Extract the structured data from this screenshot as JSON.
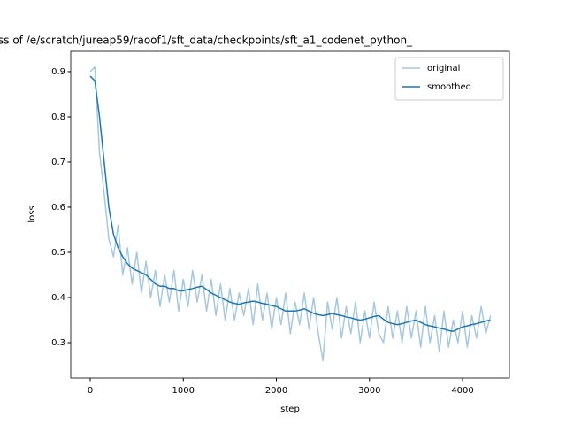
{
  "chart_data": {
    "type": "line",
    "title": "ss of /e/scratch/jureap59/raoof1/sft_data/checkpoints/sft_a1_codenet_python_",
    "x_label": "step",
    "y_label": "loss",
    "x": [
      0,
      50,
      100,
      150,
      200,
      250,
      300,
      350,
      400,
      450,
      500,
      550,
      600,
      650,
      700,
      750,
      800,
      850,
      900,
      950,
      1000,
      1050,
      1100,
      1150,
      1200,
      1250,
      1300,
      1350,
      1400,
      1450,
      1500,
      1550,
      1600,
      1650,
      1700,
      1750,
      1800,
      1850,
      1900,
      1950,
      2000,
      2050,
      2100,
      2150,
      2200,
      2250,
      2300,
      2350,
      2400,
      2450,
      2500,
      2550,
      2600,
      2650,
      2700,
      2750,
      2800,
      2850,
      2900,
      2950,
      3000,
      3050,
      3100,
      3150,
      3200,
      3250,
      3300,
      3350,
      3400,
      3450,
      3500,
      3550,
      3600,
      3650,
      3700,
      3750,
      3800,
      3850,
      3900,
      3950,
      4000,
      4050,
      4100,
      4150,
      4200,
      4250,
      4300
    ],
    "series": [
      {
        "name": "original",
        "color": "#a5c8e1",
        "values": [
          0.9,
          0.91,
          0.72,
          0.63,
          0.53,
          0.49,
          0.56,
          0.45,
          0.51,
          0.43,
          0.5,
          0.41,
          0.48,
          0.4,
          0.46,
          0.38,
          0.45,
          0.39,
          0.46,
          0.37,
          0.44,
          0.38,
          0.46,
          0.39,
          0.45,
          0.37,
          0.44,
          0.36,
          0.43,
          0.35,
          0.42,
          0.35,
          0.41,
          0.36,
          0.42,
          0.34,
          0.43,
          0.35,
          0.41,
          0.33,
          0.4,
          0.34,
          0.41,
          0.32,
          0.39,
          0.34,
          0.41,
          0.33,
          0.4,
          0.32,
          0.26,
          0.39,
          0.33,
          0.4,
          0.31,
          0.38,
          0.32,
          0.39,
          0.3,
          0.37,
          0.31,
          0.39,
          0.32,
          0.3,
          0.38,
          0.31,
          0.37,
          0.3,
          0.38,
          0.31,
          0.37,
          0.29,
          0.38,
          0.3,
          0.36,
          0.28,
          0.37,
          0.29,
          0.35,
          0.3,
          0.37,
          0.29,
          0.36,
          0.31,
          0.38,
          0.32,
          0.36
        ]
      },
      {
        "name": "smoothed",
        "color": "#1f77b4",
        "values": [
          0.89,
          0.88,
          0.8,
          0.7,
          0.6,
          0.54,
          0.51,
          0.49,
          0.475,
          0.465,
          0.46,
          0.455,
          0.45,
          0.44,
          0.43,
          0.425,
          0.425,
          0.42,
          0.42,
          0.415,
          0.415,
          0.418,
          0.42,
          0.423,
          0.425,
          0.418,
          0.41,
          0.405,
          0.4,
          0.395,
          0.39,
          0.387,
          0.385,
          0.388,
          0.39,
          0.392,
          0.39,
          0.387,
          0.385,
          0.382,
          0.38,
          0.375,
          0.37,
          0.37,
          0.37,
          0.372,
          0.375,
          0.37,
          0.365,
          0.362,
          0.36,
          0.362,
          0.365,
          0.362,
          0.36,
          0.357,
          0.355,
          0.352,
          0.35,
          0.352,
          0.355,
          0.358,
          0.36,
          0.352,
          0.345,
          0.342,
          0.34,
          0.342,
          0.345,
          0.348,
          0.35,
          0.345,
          0.34,
          0.337,
          0.335,
          0.332,
          0.33,
          0.327,
          0.325,
          0.33,
          0.335,
          0.337,
          0.34,
          0.342,
          0.345,
          0.348,
          0.35
        ]
      }
    ],
    "xlim": [
      -209,
      4503
    ],
    "ylim": [
      0.2216,
      0.945
    ],
    "xticks": [
      0,
      1000,
      2000,
      3000,
      4000
    ],
    "yticks": [
      0.3,
      0.4,
      0.5,
      0.6,
      0.7,
      0.8,
      0.9
    ],
    "legend": "upper right"
  }
}
